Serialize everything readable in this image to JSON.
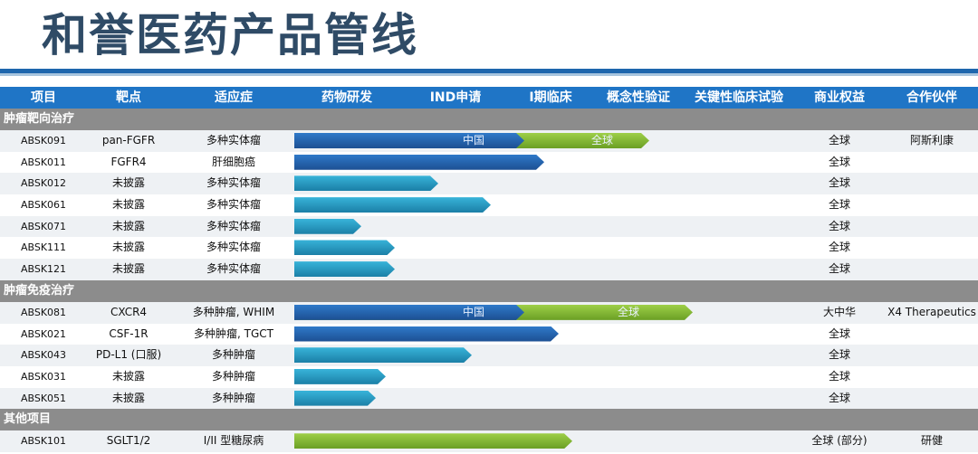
{
  "title": "和誉医药产品管线",
  "colors": {
    "title": "#2f4b66",
    "header_bg": "#1f75c6",
    "section_bg": "#8c8c8c",
    "bar_china": "#2d74c4",
    "bar_teal": "#29a3cc",
    "bar_global": "#86bb3a"
  },
  "columns": [
    "项目",
    "靶点",
    "适应症",
    "药物研发",
    "IND申请",
    "I期临床",
    "概念性验证",
    "关键性临床试验",
    "商业权益",
    "合作伙伴"
  ],
  "sections": [
    {
      "name": "肿瘤靶向治疗",
      "rows": [
        {
          "id": "ABSK091",
          "target": "pan-FGFR",
          "indication": "多种实体瘤",
          "stage_progress": 0.48,
          "bar": "cn",
          "bar_label": "中国",
          "global_progress": 0.74,
          "global_label": "全球",
          "rights": "全球",
          "partner": "阿斯利康"
        },
        {
          "id": "ABSK011",
          "target": "FGFR4",
          "indication": "肝细胞癌",
          "stage_progress": 0.52,
          "bar": "cn",
          "rights": "全球",
          "partner": ""
        },
        {
          "id": "ABSK012",
          "target": "未披露",
          "indication": "多种实体瘤",
          "stage_progress": 0.3,
          "bar": "teal",
          "rights": "全球",
          "partner": ""
        },
        {
          "id": "ABSK061",
          "target": "未披露",
          "indication": "多种实体瘤",
          "stage_progress": 0.41,
          "bar": "teal",
          "rights": "全球",
          "partner": ""
        },
        {
          "id": "ABSK071",
          "target": "未披露",
          "indication": "多种实体瘤",
          "stage_progress": 0.14,
          "bar": "teal",
          "rights": "全球",
          "partner": ""
        },
        {
          "id": "ABSK111",
          "target": "未披露",
          "indication": "多种实体瘤",
          "stage_progress": 0.21,
          "bar": "teal",
          "rights": "全球",
          "partner": ""
        },
        {
          "id": "ABSK121",
          "target": "未披露",
          "indication": "多种实体瘤",
          "stage_progress": 0.21,
          "bar": "teal",
          "rights": "全球",
          "partner": ""
        }
      ]
    },
    {
      "name": "肿瘤免疫治疗",
      "rows": [
        {
          "id": "ABSK081",
          "target": "CXCR4",
          "indication": "多种肿瘤, WHIM",
          "stage_progress": 0.48,
          "bar": "cn",
          "bar_label": "中国",
          "global_progress": 0.83,
          "global_label": "全球",
          "rights": "大中华",
          "partner": "X4 Therapeutics"
        },
        {
          "id": "ABSK021",
          "target": "CSF-1R",
          "indication": "多种肿瘤, TGCT",
          "stage_progress": 0.55,
          "bar": "cn",
          "rights": "全球",
          "partner": ""
        },
        {
          "id": "ABSK043",
          "target": "PD-L1 (口服)",
          "indication": "多种肿瘤",
          "stage_progress": 0.37,
          "bar": "teal",
          "rights": "全球",
          "partner": ""
        },
        {
          "id": "ABSK031",
          "target": "未披露",
          "indication": "多种肿瘤",
          "stage_progress": 0.19,
          "bar": "teal",
          "rights": "全球",
          "partner": ""
        },
        {
          "id": "ABSK051",
          "target": "未披露",
          "indication": "多种肿瘤",
          "stage_progress": 0.17,
          "bar": "teal",
          "rights": "全球",
          "partner": ""
        }
      ]
    },
    {
      "name": "其他项目",
      "rows": [
        {
          "id": "ABSK101",
          "target": "SGLT1/2",
          "indication": "I/II 型糖尿病",
          "stage_progress": 0.58,
          "bar": "green",
          "rights": "全球 (部分)",
          "partner": "研健"
        }
      ]
    }
  ]
}
